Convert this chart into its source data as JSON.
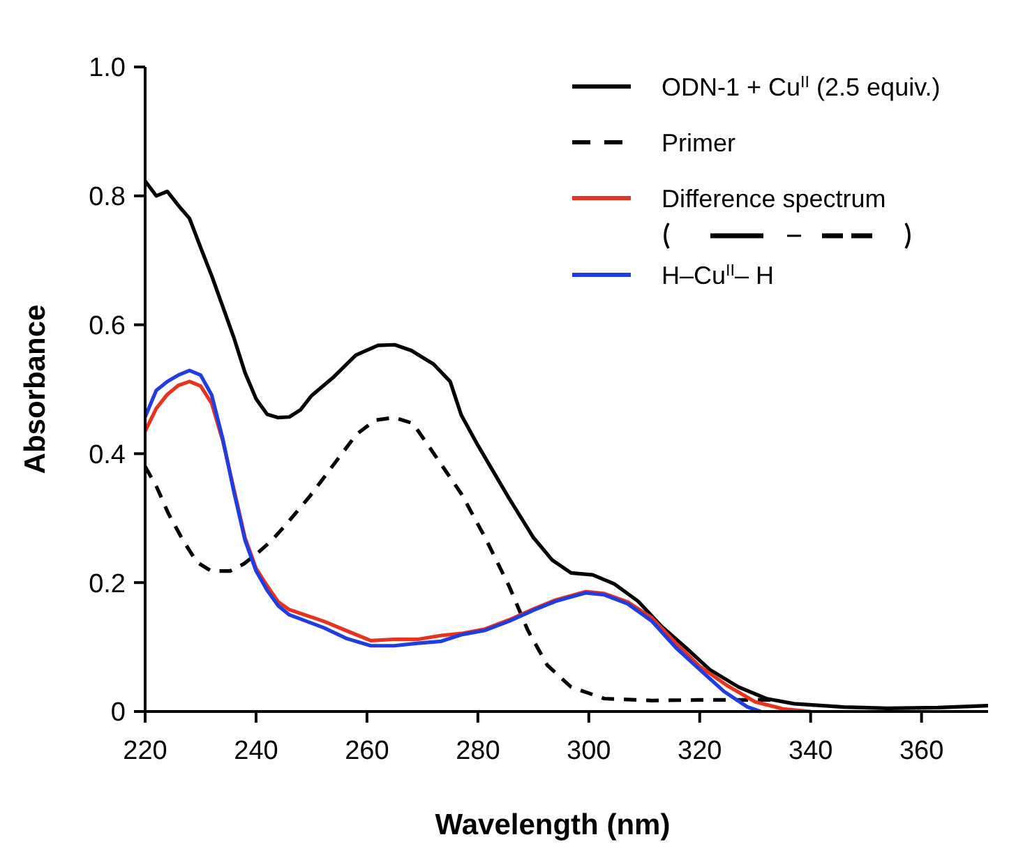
{
  "chart_data": {
    "type": "line",
    "xlabel": "Wavelength (nm)",
    "ylabel": "Absorbance",
    "xlim": [
      220,
      372
    ],
    "ylim": [
      0,
      1
    ],
    "xticks": [
      220,
      240,
      260,
      280,
      300,
      320,
      340,
      360
    ],
    "yticks": [
      0,
      0.2,
      0.4,
      0.6,
      0.8,
      {
        "value": 1,
        "label": "1.0"
      }
    ],
    "legend": "top right",
    "grid": false,
    "series": [
      {
        "name": "ODN-1 + Cu$^{II}$ (2.5 equiv.)",
        "color": "#000000",
        "line_style": "solid",
        "x": [
          220,
          222,
          224,
          226,
          228,
          230,
          232,
          234,
          236,
          238,
          240,
          242,
          244,
          246,
          248,
          250,
          254,
          258,
          262,
          265,
          268,
          272,
          275,
          277,
          280,
          285.6,
          290,
          293.4,
          296.8,
          300.7,
          304.6,
          308.9,
          313,
          317.5,
          321.8,
          327,
          332,
          337,
          346,
          354,
          363,
          372
        ],
        "values": [
          0.823,
          0.8,
          0.807,
          0.785,
          0.765,
          0.72,
          0.676,
          0.628,
          0.58,
          0.526,
          0.485,
          0.461,
          0.456,
          0.457,
          0.468,
          0.49,
          0.519,
          0.553,
          0.568,
          0.569,
          0.56,
          0.539,
          0.512,
          0.46,
          0.413,
          0.331,
          0.27,
          0.235,
          0.215,
          0.212,
          0.198,
          0.171,
          0.133,
          0.099,
          0.065,
          0.038,
          0.02,
          0.012,
          0.007,
          0.005,
          0.006,
          0.009
        ]
      },
      {
        "name": "Primer",
        "color": "#000000",
        "line_style": "dashed",
        "x": [
          220,
          222.1,
          224.2,
          226.8,
          229.3,
          231.9,
          235.3,
          237.8,
          240.3,
          242.9,
          245.4,
          249.7,
          253.9,
          258.1,
          261.5,
          264.9,
          268.3,
          272.7,
          277,
          281.3,
          285.6,
          289,
          292.5,
          296.8,
          302.8,
          311.4,
          320,
          328.6,
          334
        ],
        "values": [
          0.38,
          0.348,
          0.307,
          0.266,
          0.232,
          0.218,
          0.218,
          0.229,
          0.246,
          0.266,
          0.29,
          0.334,
          0.382,
          0.43,
          0.452,
          0.456,
          0.447,
          0.392,
          0.338,
          0.27,
          0.195,
          0.126,
          0.072,
          0.038,
          0.02,
          0.017,
          0.018,
          0.018,
          0.018
        ]
      },
      {
        "name": "Difference spectrum",
        "color": "#e8321e",
        "line_style": "solid",
        "x": [
          220,
          222,
          224,
          226,
          228,
          230,
          232,
          234,
          236,
          238,
          240,
          242,
          244,
          246,
          252.2,
          256.4,
          260.7,
          264.9,
          269.2,
          273.4,
          277,
          281.3,
          285.6,
          290,
          294,
          299.4,
          302.8,
          307,
          311.4,
          315.7,
          320,
          325,
          330,
          335,
          340
        ],
        "values": [
          0.435,
          0.47,
          0.492,
          0.506,
          0.512,
          0.505,
          0.478,
          0.42,
          0.345,
          0.27,
          0.222,
          0.195,
          0.17,
          0.158,
          0.14,
          0.125,
          0.11,
          0.112,
          0.112,
          0.118,
          0.121,
          0.128,
          0.142,
          0.159,
          0.173,
          0.186,
          0.183,
          0.17,
          0.145,
          0.106,
          0.07,
          0.04,
          0.015,
          0.004,
          0
        ]
      },
      {
        "name": "H–Cu$^{II}$– H",
        "color": "#1f3de0",
        "line_style": "solid",
        "x": [
          220,
          222,
          224,
          226,
          228,
          230,
          232,
          234,
          236,
          238,
          240,
          242,
          244,
          246,
          252.2,
          256.4,
          260.7,
          264.9,
          269.2,
          273.4,
          277,
          281.3,
          285.6,
          290,
          294,
          299.4,
          302.8,
          307,
          311.4,
          315.7,
          320,
          324.4,
          328.6,
          331
        ],
        "values": [
          0.457,
          0.498,
          0.512,
          0.522,
          0.529,
          0.522,
          0.491,
          0.423,
          0.341,
          0.266,
          0.218,
          0.188,
          0.164,
          0.15,
          0.13,
          0.113,
          0.102,
          0.102,
          0.106,
          0.109,
          0.119,
          0.126,
          0.14,
          0.157,
          0.171,
          0.184,
          0.181,
          0.167,
          0.14,
          0.099,
          0.065,
          0.031,
          0.007,
          0
        ]
      }
    ]
  }
}
